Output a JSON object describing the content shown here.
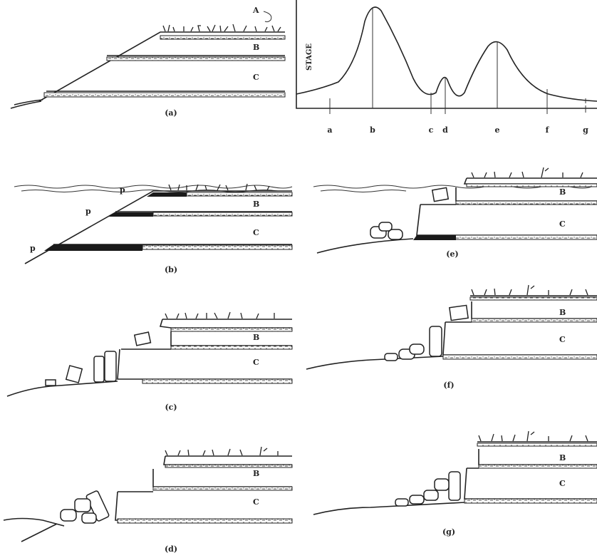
{
  "panels": [
    {
      "title": "(a)",
      "labels": [
        "A",
        "B",
        "C"
      ]
    },
    {
      "title": "(b)",
      "labels": [
        "p",
        "p",
        "p",
        "B",
        "C"
      ]
    },
    {
      "title": "(c)",
      "labels": [
        "B",
        "C"
      ]
    },
    {
      "title": "(d)",
      "labels": [
        "B",
        "C"
      ]
    },
    {
      "title": "(e)",
      "labels": [
        "B",
        "C"
      ]
    },
    {
      "title": "(f)",
      "labels": [
        "B",
        "C"
      ]
    },
    {
      "title": "(g)",
      "labels": [
        "B",
        "C"
      ]
    }
  ],
  "hydrograph": {
    "y_label": "STAGE",
    "x_labels": [
      "a",
      "b",
      "c",
      "d",
      "e",
      "f",
      "g"
    ]
  }
}
